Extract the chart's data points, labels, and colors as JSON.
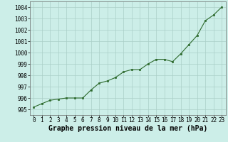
{
  "x": [
    0,
    1,
    2,
    3,
    4,
    5,
    6,
    7,
    8,
    9,
    10,
    11,
    12,
    13,
    14,
    15,
    16,
    17,
    18,
    19,
    20,
    21,
    22,
    23
  ],
  "y": [
    995.2,
    995.5,
    995.8,
    995.9,
    996.0,
    996.0,
    996.0,
    996.7,
    997.3,
    997.5,
    997.8,
    998.3,
    998.5,
    998.5,
    999.0,
    999.4,
    999.4,
    999.2,
    999.9,
    1000.7,
    1001.5,
    1002.8,
    1003.3,
    1004.0
  ],
  "line_color": "#2d6a2d",
  "marker_color": "#2d6a2d",
  "bg_color": "#cceee8",
  "grid_color": "#aacfc8",
  "xlabel": "Graphe pression niveau de la mer (hPa)",
  "ylim": [
    994.5,
    1004.5
  ],
  "xlim": [
    -0.5,
    23.5
  ],
  "yticks": [
    995,
    996,
    997,
    998,
    999,
    1000,
    1001,
    1002,
    1003,
    1004
  ],
  "xticks": [
    0,
    1,
    2,
    3,
    4,
    5,
    6,
    7,
    8,
    9,
    10,
    11,
    12,
    13,
    14,
    15,
    16,
    17,
    18,
    19,
    20,
    21,
    22,
    23
  ],
  "tick_fontsize": 5.5,
  "label_fontsize": 7.0
}
